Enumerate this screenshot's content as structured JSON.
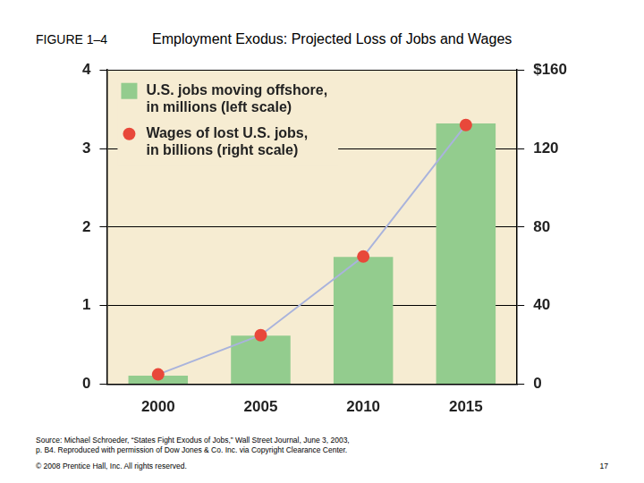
{
  "figure_label": "FIGURE 1–4",
  "chart_data": {
    "type": "bar",
    "title": "Employment Exodus: Projected Loss of Jobs and Wages",
    "categories": [
      "2000",
      "2005",
      "2010",
      "2015"
    ],
    "series": [
      {
        "name": "U.S. jobs moving offshore, in millions (left scale)",
        "type": "bar",
        "color": "#93cc8e",
        "values": [
          0.11,
          0.62,
          1.62,
          3.32
        ]
      },
      {
        "name": "Wages of lost U.S. jobs, in billions (right scale)",
        "type": "line",
        "color": "#e8483a",
        "marker": "circle",
        "axis": "y2",
        "values": [
          5,
          25,
          65,
          132
        ]
      }
    ],
    "ylim": [
      0,
      4
    ],
    "yticks": [
      0,
      1,
      2,
      3,
      4
    ],
    "y2lim": [
      0,
      160
    ],
    "y2ticks": [
      0,
      40,
      80,
      120,
      {
        "value": 160,
        "label": "$160"
      }
    ],
    "grid": true,
    "legend": "upper left"
  },
  "source": [
    "Source: Michael Schroeder, “States Fight Exodus of Jobs,” Wall Street Journal, June 3, 2003,",
    "p. B4. Reproduced with permission of Dow Jones & Co. Inc. via Copyright Clearance Center."
  ],
  "copyright": "© 2008 Prentice Hall, Inc. All rights reserved.",
  "page_number": "17"
}
